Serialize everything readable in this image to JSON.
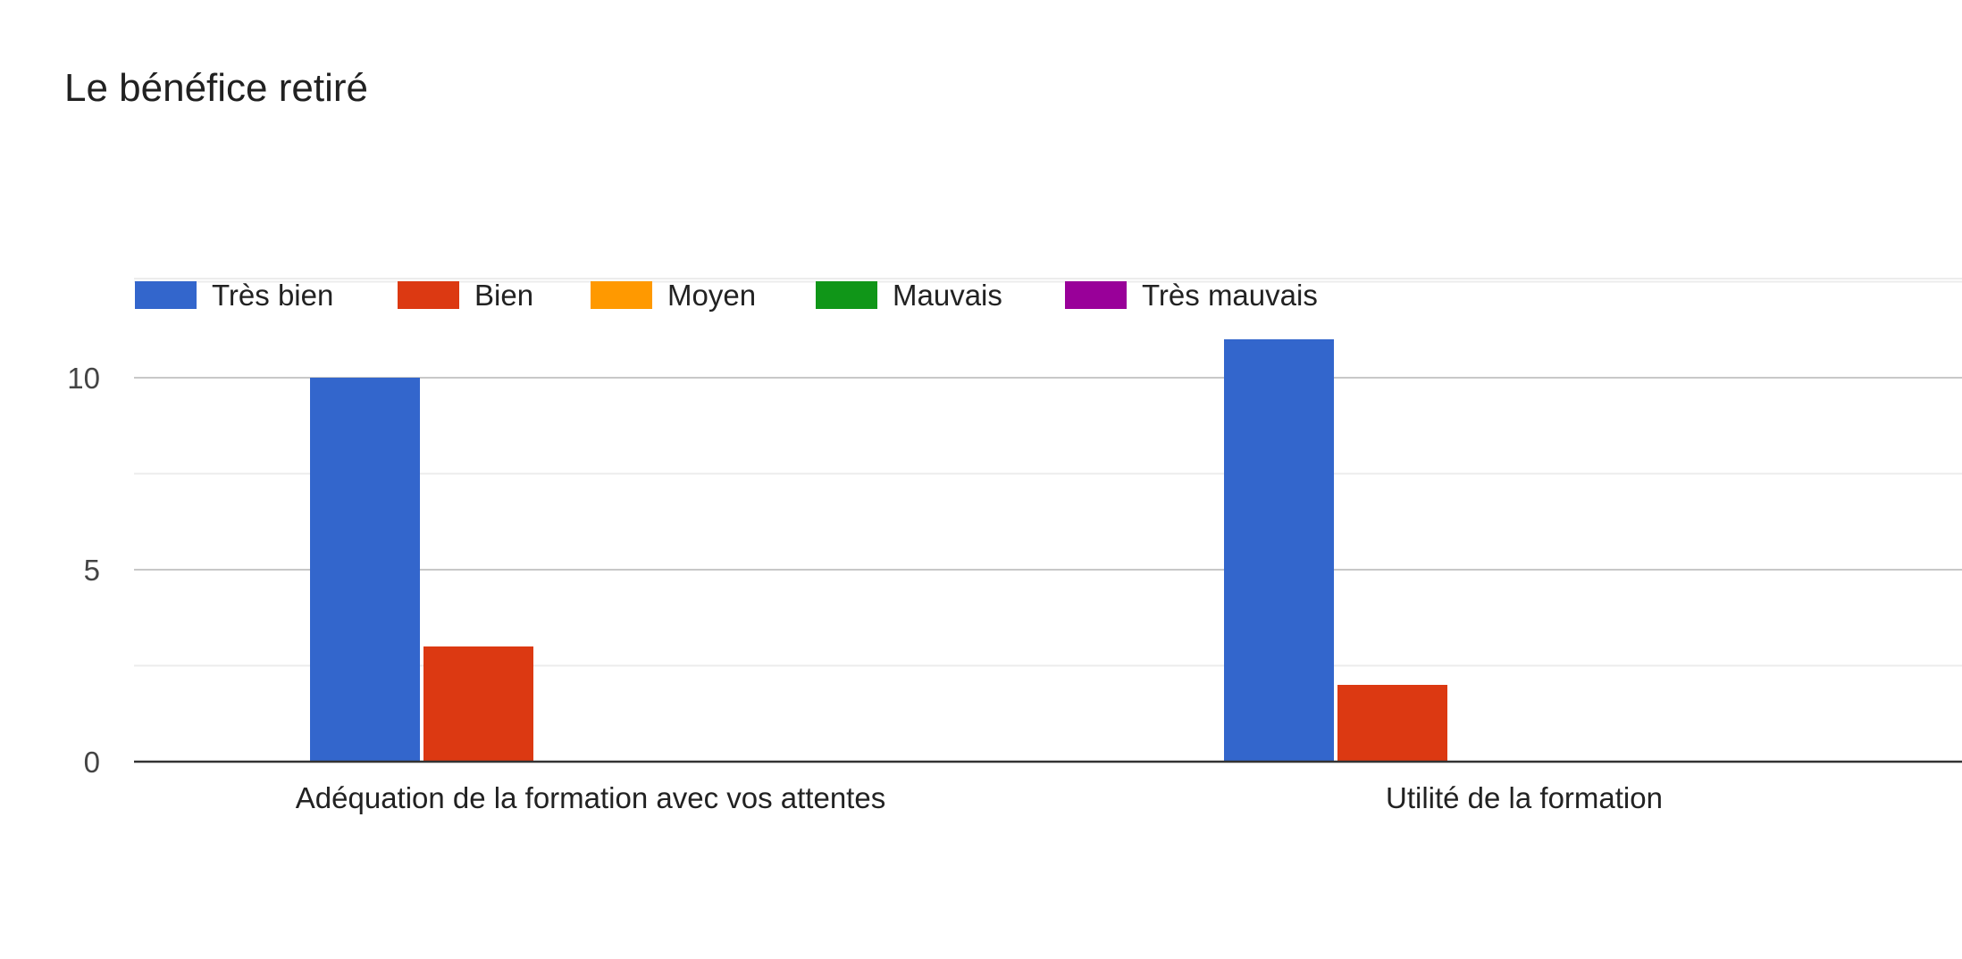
{
  "chart_data": {
    "type": "bar",
    "title": "Le bénéfice retiré",
    "categories": [
      "Adéquation de la formation avec vos attentes",
      "Utilité de la formation"
    ],
    "series": [
      {
        "name": "Très bien",
        "color": "#3366CC",
        "values": [
          10,
          11
        ]
      },
      {
        "name": "Bien",
        "color": "#DC3912",
        "values": [
          3,
          2
        ]
      },
      {
        "name": "Moyen",
        "color": "#FF9900",
        "values": [
          0,
          0
        ]
      },
      {
        "name": "Mauvais",
        "color": "#109618",
        "values": [
          0,
          0
        ]
      },
      {
        "name": "Très mauvais",
        "color": "#990099",
        "values": [
          0,
          0
        ]
      }
    ],
    "yticks": [
      0,
      5,
      10
    ],
    "ylim": [
      0,
      12.5
    ],
    "grid": true,
    "legend_position": "top-left"
  }
}
